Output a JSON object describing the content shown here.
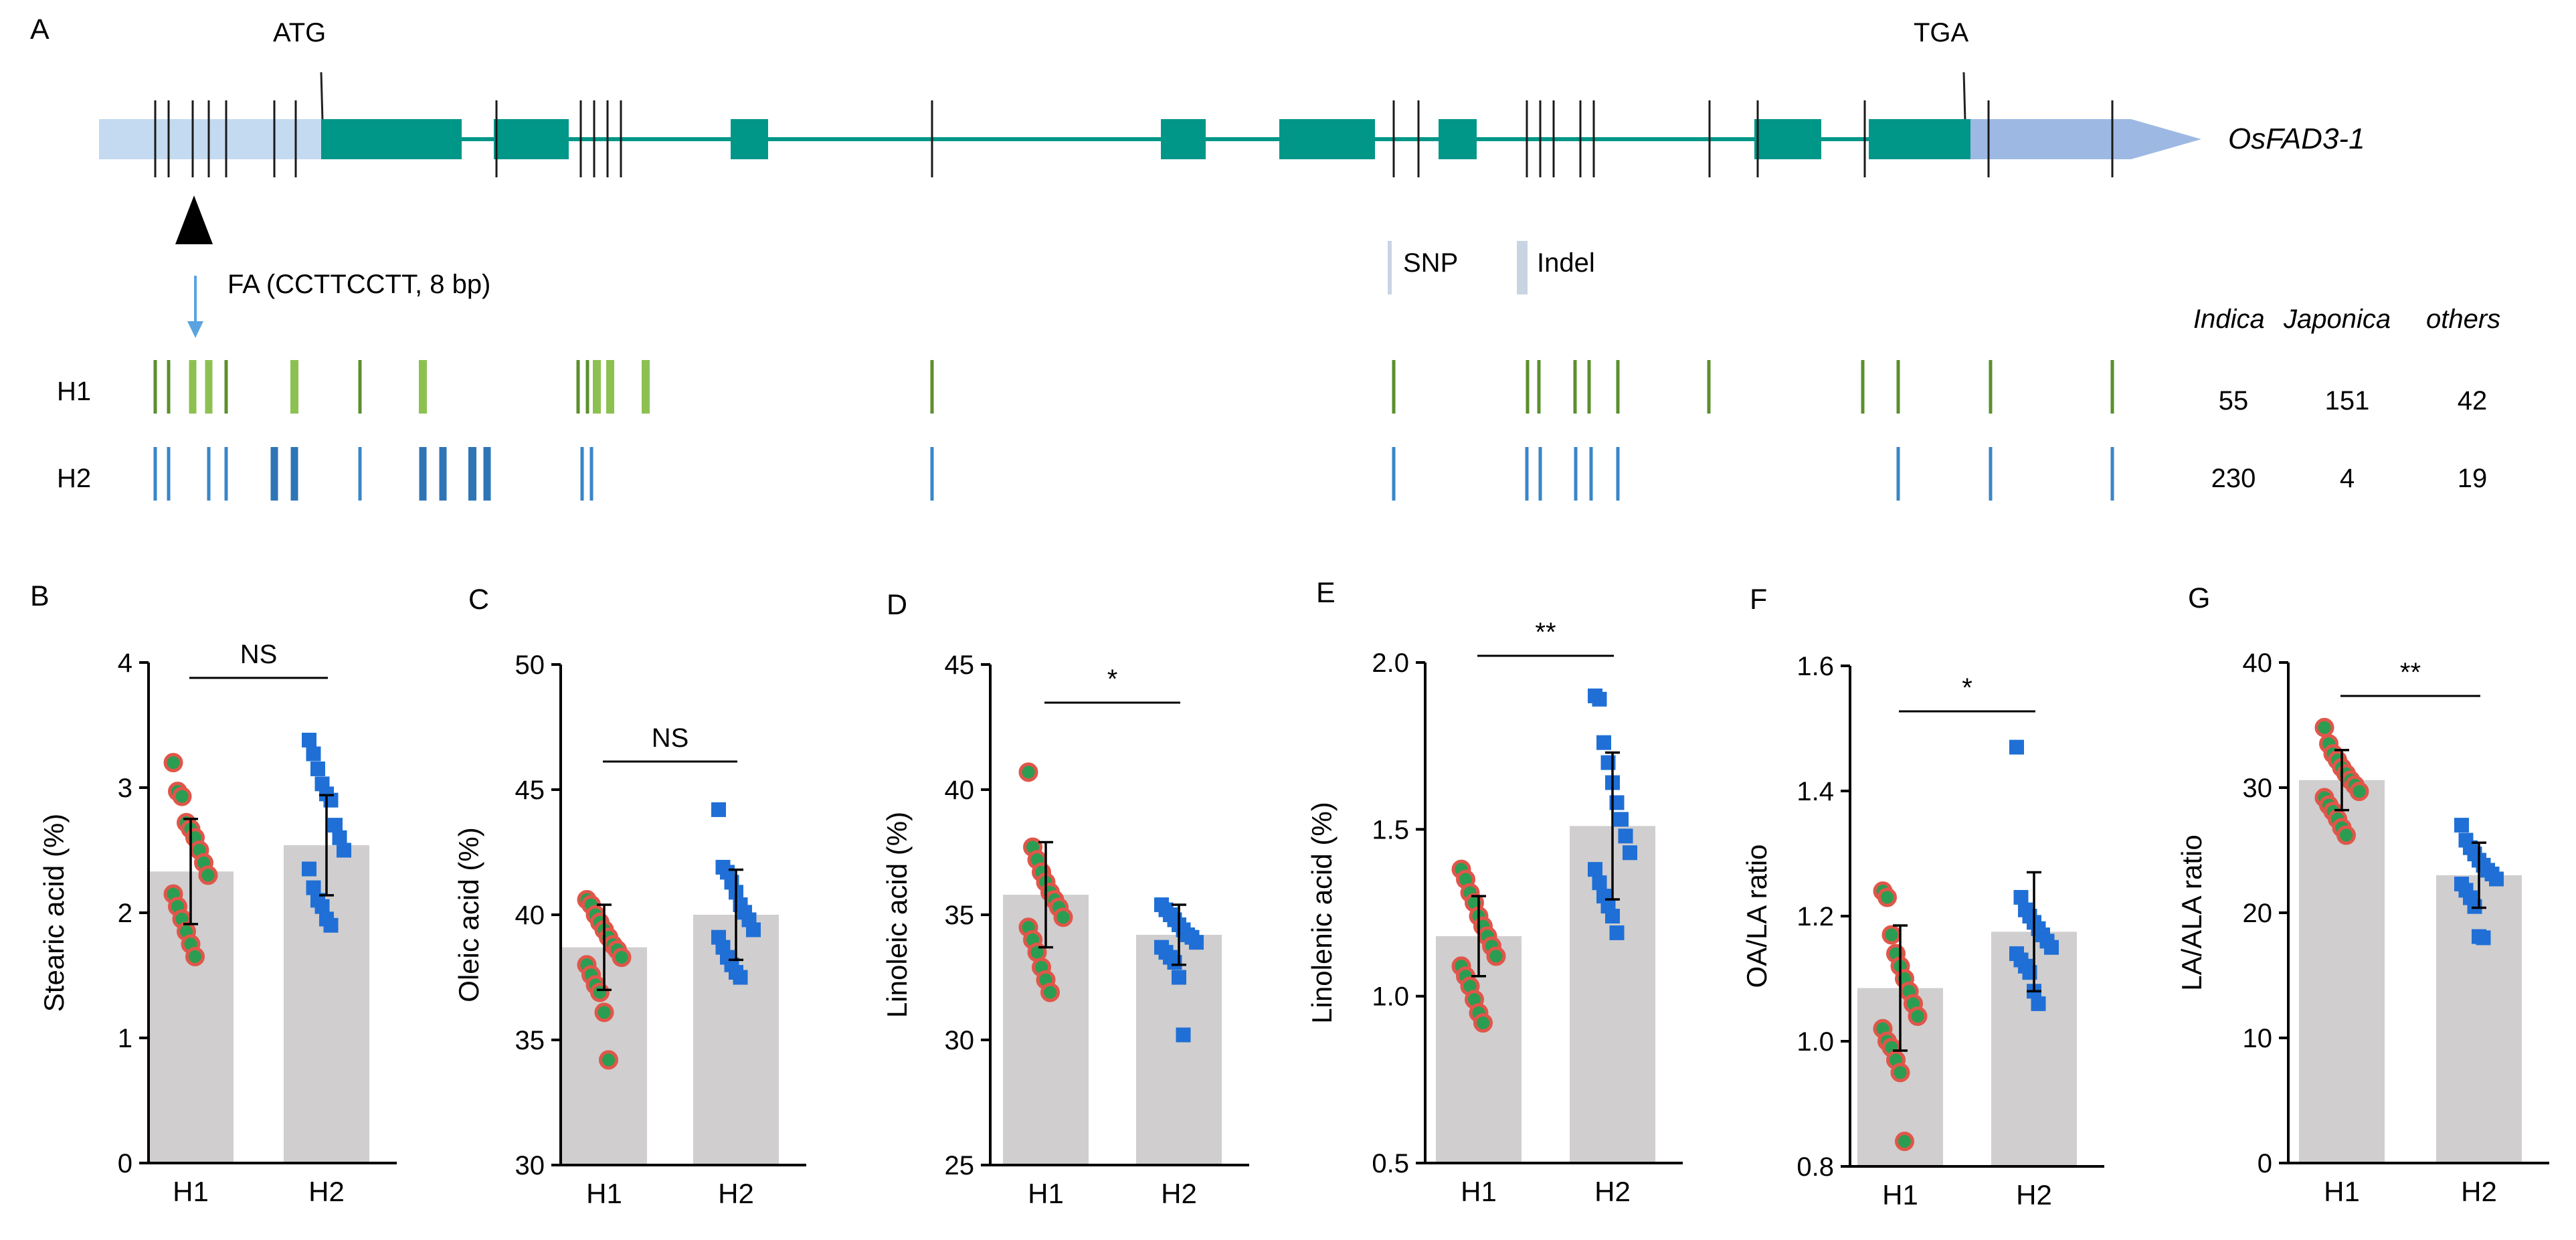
{
  "figure": {
    "panel_a": {
      "letter": "A",
      "gene_name": "OsFAD3-1",
      "start_codon": "ATG",
      "stop_codon": "TGA",
      "fa_label": "FA (CCTTCCTT, 8 bp)",
      "legend_snp": "SNP",
      "legend_indel": "Indel",
      "table_headers": [
        "Indica",
        "Japonica",
        "others"
      ],
      "haplotypes": [
        {
          "name": "H1",
          "counts": [
            "55",
            "151",
            "42"
          ],
          "color": "#5b8f2e",
          "light_color": "#8cc152"
        },
        {
          "name": "H2",
          "counts": [
            "230",
            "4",
            "19"
          ],
          "color": "#3a86c8",
          "light_color": "#2e75b6"
        }
      ],
      "colors": {
        "exon": "#009688",
        "utr5": "#c3daf0",
        "utr3": "#9db9e3",
        "fa_arrow": "#5ba3e0"
      }
    }
  },
  "chart_data": [
    {
      "type": "bar",
      "panel": "B",
      "ylabel": "Stearic acid (%)",
      "categories": [
        "H1",
        "H2"
      ],
      "values": [
        2.33,
        2.54
      ],
      "sd": [
        0.42,
        0.4
      ],
      "ylim": [
        0,
        4
      ],
      "yticks": [
        0,
        1,
        2,
        3,
        4
      ],
      "significance": "NS",
      "points": [
        [
          3.2,
          2.97,
          2.93,
          2.72,
          2.67,
          2.6,
          2.5,
          2.4,
          2.3,
          2.15,
          2.05,
          1.95,
          1.85,
          1.75,
          1.65
        ],
        [
          3.38,
          3.27,
          3.15,
          3.03,
          2.95,
          2.9,
          2.7,
          2.6,
          2.5,
          2.35,
          2.2,
          2.1,
          2.05,
          1.95,
          1.9
        ]
      ]
    },
    {
      "type": "bar",
      "panel": "C",
      "ylabel": "Oleic acid (%)",
      "categories": [
        "H1",
        "H2"
      ],
      "values": [
        38.7,
        40.0
      ],
      "sd": [
        1.7,
        1.8
      ],
      "ylim": [
        30,
        50
      ],
      "yticks": [
        30,
        35,
        40,
        45,
        50
      ],
      "significance": "NS",
      "points": [
        [
          40.6,
          40.4,
          40.0,
          39.7,
          39.4,
          39.1,
          38.8,
          38.6,
          38.3,
          38.0,
          37.6,
          37.2,
          36.9,
          36.1,
          34.2
        ],
        [
          44.2,
          41.9,
          41.7,
          41.3,
          40.9,
          40.4,
          40.1,
          39.8,
          39.4,
          39.1,
          38.7,
          38.3,
          38.0,
          37.7,
          37.5
        ]
      ]
    },
    {
      "type": "bar",
      "panel": "D",
      "ylabel": "Linoleic acid (%)",
      "categories": [
        "H1",
        "H2"
      ],
      "values": [
        35.8,
        34.2
      ],
      "sd": [
        2.1,
        1.2
      ],
      "ylim": [
        25,
        45
      ],
      "yticks": [
        25,
        30,
        35,
        40,
        45
      ],
      "significance": "*",
      "points": [
        [
          40.7,
          37.7,
          37.2,
          36.7,
          36.3,
          35.9,
          35.6,
          35.3,
          34.9,
          34.5,
          34.0,
          33.5,
          32.9,
          32.4,
          31.9
        ],
        [
          35.4,
          35.2,
          35.0,
          34.8,
          34.6,
          34.4,
          34.2,
          34.1,
          33.9,
          33.7,
          33.5,
          33.3,
          33.1,
          32.5,
          30.2
        ]
      ]
    },
    {
      "type": "bar",
      "panel": "E",
      "ylabel": "Linolenic acid (%)",
      "categories": [
        "H1",
        "H2"
      ],
      "values": [
        1.18,
        1.51
      ],
      "sd": [
        0.12,
        0.22
      ],
      "ylim": [
        0.5,
        2.0
      ],
      "yticks": [
        0.5,
        1.0,
        1.5,
        2.0
      ],
      "significance": "**",
      "points": [
        [
          1.38,
          1.35,
          1.31,
          1.28,
          1.24,
          1.21,
          1.18,
          1.15,
          1.12,
          1.09,
          1.06,
          1.03,
          0.99,
          0.95,
          0.92
        ],
        [
          1.9,
          1.89,
          1.76,
          1.7,
          1.64,
          1.58,
          1.53,
          1.48,
          1.43,
          1.38,
          1.34,
          1.3,
          1.27,
          1.24,
          1.19
        ]
      ]
    },
    {
      "type": "bar",
      "panel": "F",
      "ylabel": "OA/LA ratio",
      "categories": [
        "H1",
        "H2"
      ],
      "values": [
        1.085,
        1.175
      ],
      "sd": [
        0.1,
        0.095
      ],
      "ylim": [
        0.8,
        1.6
      ],
      "yticks": [
        0.8,
        1.0,
        1.2,
        1.4,
        1.6
      ],
      "significance": "*",
      "points": [
        [
          1.24,
          1.23,
          1.17,
          1.14,
          1.12,
          1.1,
          1.08,
          1.06,
          1.04,
          1.02,
          1.0,
          0.99,
          0.97,
          0.95,
          0.84
        ],
        [
          1.47,
          1.23,
          1.21,
          1.2,
          1.19,
          1.18,
          1.17,
          1.16,
          1.15,
          1.14,
          1.13,
          1.12,
          1.11,
          1.08,
          1.06
        ]
      ]
    },
    {
      "type": "bar",
      "panel": "G",
      "ylabel": "LA/ALA ratio",
      "categories": [
        "H1",
        "H2"
      ],
      "values": [
        30.6,
        23.0
      ],
      "sd": [
        2.4,
        2.6
      ],
      "ylim": [
        0,
        40
      ],
      "yticks": [
        0,
        10,
        20,
        30,
        40
      ],
      "significance": "**",
      "points": [
        [
          34.8,
          33.5,
          32.7,
          32.2,
          31.6,
          31.1,
          30.6,
          30.2,
          29.7,
          29.2,
          28.6,
          28.1,
          27.5,
          26.8,
          26.2
        ],
        [
          27.0,
          25.8,
          25.2,
          24.7,
          24.2,
          23.8,
          23.4,
          23.1,
          22.7,
          22.3,
          21.8,
          21.2,
          20.5,
          18.1,
          18.0
        ]
      ]
    }
  ]
}
